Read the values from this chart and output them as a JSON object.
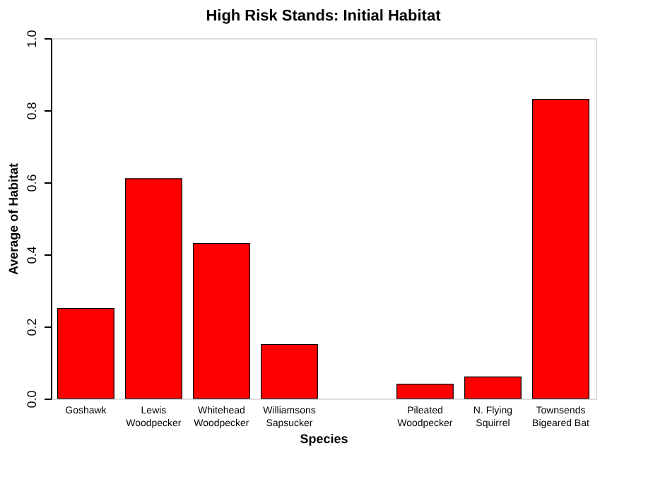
{
  "chart_data": {
    "type": "bar",
    "title": "High Risk Stands: Initial Habitat",
    "xlabel": "Species",
    "ylabel": "Average of Habitat",
    "categories": [
      "Goshawk",
      "Lewis\nWoodpecker",
      "Whitehead\nWoodpecker",
      "Williamsons\nSapsucker",
      null,
      "Pileated\nWoodpecker",
      "N. Flying\nSquirrel",
      "Townsends\nBigeared Bat"
    ],
    "values": [
      0.25,
      0.61,
      0.43,
      0.15,
      null,
      0.04,
      0.06,
      0.83
    ],
    "color": "#ff0000",
    "ylim": [
      0,
      1.0
    ],
    "yticks": [
      {
        "value": 0,
        "label": "0.0"
      },
      0.2,
      0.4,
      0.6,
      0.8,
      {
        "value": 1,
        "label": "1.0"
      }
    ],
    "grid": false
  }
}
